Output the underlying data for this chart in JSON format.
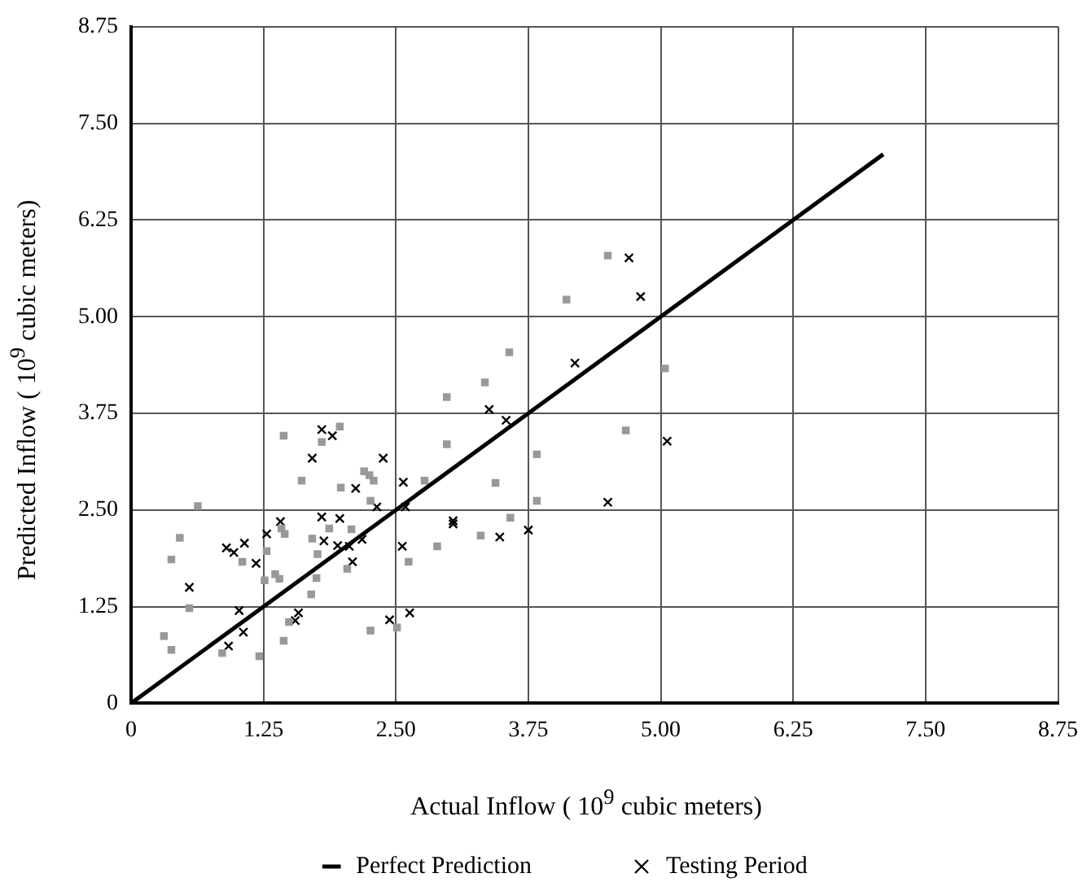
{
  "chart_data": {
    "type": "scatter",
    "xlabel": "Actual Inflow ( 10$^{9}$ cubic meters)",
    "ylabel": "Predicted Inflow ( 10$^{9}$ cubic meters)",
    "xlim": [
      0,
      8.75
    ],
    "ylim": [
      0,
      8.75
    ],
    "xticks": [
      0,
      1.25,
      {
        "value": 2.5,
        "label": "2.50"
      },
      3.75,
      {
        "value": 5,
        "label": "5.00"
      },
      6.25,
      {
        "value": 7.5,
        "label": "7.50"
      },
      8.75
    ],
    "yticks": [
      0,
      1.25,
      {
        "value": 2.5,
        "label": "2.50"
      },
      3.75,
      {
        "value": 5,
        "label": "5.00"
      },
      6.25,
      {
        "value": 7.5,
        "label": "7.50"
      },
      8.75
    ],
    "grid": true,
    "legend": "bottom",
    "series": [
      {
        "name": "Perfect Prediction",
        "type": "line",
        "color": "#000000",
        "marker": "none",
        "x": [
          0,
          7.1
        ],
        "values": [
          0,
          7.1
        ]
      },
      {
        "color": "#999999",
        "marker": "square",
        "x": [
          1.44,
          1.97,
          1.8,
          2.98,
          2.98,
          1.61,
          2.2,
          2.25,
          2.29,
          1.98,
          2.77,
          2.26,
          0.63,
          0.46,
          0.38,
          1.42,
          1.45,
          1.28,
          1.71,
          1.87,
          2.08,
          1.76,
          1.05,
          1.36,
          1.4,
          1.26,
          1.75,
          2.04,
          2.62,
          2.89,
          1.7,
          0.55,
          0.31,
          0.38,
          0.86,
          1.21,
          1.44,
          1.49,
          2.26,
          2.51,
          4.5,
          4.11,
          3.57,
          3.34,
          5.04,
          4.67,
          3.83,
          3.44,
          3.83,
          3.58,
          3.3
        ],
        "values": [
          3.46,
          3.58,
          3.38,
          3.96,
          3.35,
          2.88,
          3.0,
          2.95,
          2.88,
          2.79,
          2.88,
          2.62,
          2.55,
          2.14,
          1.86,
          2.26,
          2.19,
          1.97,
          2.13,
          2.26,
          2.25,
          1.93,
          1.83,
          1.67,
          1.61,
          1.59,
          1.62,
          1.74,
          1.83,
          2.03,
          1.41,
          1.23,
          0.87,
          0.69,
          0.65,
          0.61,
          0.81,
          1.05,
          0.94,
          0.98,
          5.79,
          5.22,
          4.54,
          4.15,
          4.33,
          3.53,
          3.22,
          2.85,
          2.62,
          2.4,
          2.17
        ]
      },
      {
        "name": "Testing Period",
        "color": "#000000",
        "marker": "cross",
        "x": [
          1.8,
          1.9,
          1.71,
          2.38,
          2.57,
          2.12,
          2.32,
          2.59,
          3.04,
          1.8,
          1.97,
          1.41,
          1.28,
          1.07,
          0.9,
          0.97,
          1.18,
          1.82,
          1.95,
          2.06,
          2.18,
          2.56,
          2.09,
          0.55,
          1.02,
          1.06,
          0.92,
          1.58,
          1.55,
          2.44,
          2.63,
          4.7,
          4.81,
          4.19,
          3.38,
          3.54,
          5.06,
          4.5,
          3.04,
          3.48,
          3.75
        ],
        "values": [
          3.54,
          3.46,
          3.17,
          3.17,
          2.86,
          2.78,
          2.54,
          2.54,
          2.32,
          2.41,
          2.39,
          2.35,
          2.19,
          2.07,
          2.01,
          1.95,
          1.81,
          2.1,
          2.04,
          2.03,
          2.12,
          2.03,
          1.83,
          1.5,
          1.2,
          0.92,
          0.74,
          1.17,
          1.07,
          1.08,
          1.17,
          5.76,
          5.26,
          4.4,
          3.8,
          3.66,
          3.39,
          2.6,
          2.36,
          2.15,
          2.24
        ]
      }
    ]
  }
}
